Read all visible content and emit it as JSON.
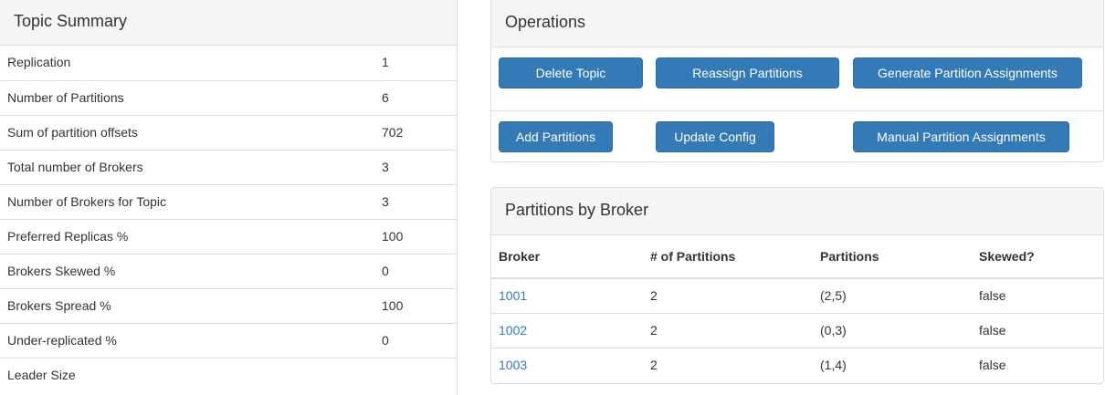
{
  "topic_summary": {
    "title": "Topic Summary",
    "rows": [
      {
        "label": "Replication",
        "value": "1"
      },
      {
        "label": "Number of Partitions",
        "value": "6"
      },
      {
        "label": "Sum of partition offsets",
        "value": "702"
      },
      {
        "label": "Total number of Brokers",
        "value": "3"
      },
      {
        "label": "Number of Brokers for Topic",
        "value": "3"
      },
      {
        "label": "Preferred Replicas %",
        "value": "100"
      },
      {
        "label": "Brokers Skewed %",
        "value": "0"
      },
      {
        "label": "Brokers Spread %",
        "value": "100"
      },
      {
        "label": "Under-replicated %",
        "value": "0"
      },
      {
        "label": "Leader Size",
        "value": ""
      }
    ]
  },
  "operations": {
    "title": "Operations",
    "delete_topic": "Delete Topic",
    "reassign_partitions": "Reassign Partitions",
    "generate_partition_assignments": "Generate Partition Assignments",
    "add_partitions": "Add Partitions",
    "update_config": "Update Config",
    "manual_partition_assignments": "Manual Partition Assignments"
  },
  "partitions_by_broker": {
    "title": "Partitions by Broker",
    "columns": [
      "Broker",
      "# of Partitions",
      "Partitions",
      "Skewed?"
    ],
    "rows": [
      {
        "broker": "1001",
        "num_partitions": "2",
        "partitions": "(2,5)",
        "skewed": "false"
      },
      {
        "broker": "1002",
        "num_partitions": "2",
        "partitions": "(0,3)",
        "skewed": "false"
      },
      {
        "broker": "1003",
        "num_partitions": "2",
        "partitions": "(1,4)",
        "skewed": "false"
      }
    ]
  },
  "colors": {
    "primary_button": "#337ab7",
    "primary_button_border": "#2e6da4",
    "link": "#337ab7",
    "panel_heading_bg": "#f5f5f5",
    "border": "#dddddd",
    "text": "#333333"
  }
}
